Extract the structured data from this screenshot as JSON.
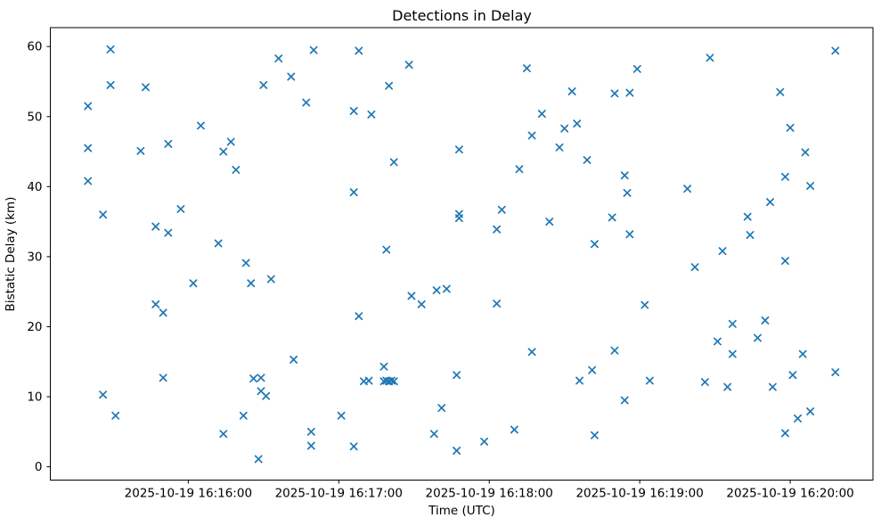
{
  "chart": {
    "title": "Detections in Delay",
    "xlabel": "Time (UTC)",
    "ylabel": "Bistatic Delay (km)"
  },
  "chart_data": {
    "type": "scatter",
    "title": "Detections in Delay",
    "xlabel": "Time (UTC)",
    "ylabel": "Bistatic Delay (km)",
    "marker": "x",
    "marker_color": "#1f77b4",
    "grid": false,
    "legend": null,
    "date": "2025-10-19",
    "x_ticks": [
      "2025-10-19 16:16:00",
      "2025-10-19 16:17:00",
      "2025-10-19 16:18:00",
      "2025-10-19 16:19:00",
      "2025-10-19 16:20:00"
    ],
    "y_ticks": [
      0,
      10,
      20,
      30,
      40,
      50,
      60
    ],
    "xlim": [
      "2025-10-19 16:15:05",
      "2025-10-19 16:20:33"
    ],
    "ylim": [
      -1.9,
      62.7
    ],
    "points": [
      [
        "16:15:29",
        59.6
      ],
      [
        "16:15:29",
        54.5
      ],
      [
        "16:15:43",
        54.2
      ],
      [
        "16:16:30",
        54.5
      ],
      [
        "16:15:20",
        51.5
      ],
      [
        "16:16:05",
        48.7
      ],
      [
        "16:15:20",
        45.5
      ],
      [
        "16:15:41",
        45.1
      ],
      [
        "16:15:52",
        46.1
      ],
      [
        "16:16:14",
        45.0
      ],
      [
        "16:16:17",
        46.4
      ],
      [
        "16:16:19",
        42.4
      ],
      [
        "16:15:20",
        40.8
      ],
      [
        "16:15:26",
        36.0
      ],
      [
        "16:15:57",
        36.8
      ],
      [
        "16:15:47",
        34.3
      ],
      [
        "16:15:52",
        33.4
      ],
      [
        "16:16:12",
        31.9
      ],
      [
        "16:16:50",
        59.5
      ],
      [
        "16:16:36",
        58.3
      ],
      [
        "16:17:08",
        59.4
      ],
      [
        "16:16:41",
        55.7
      ],
      [
        "16:17:28",
        57.4
      ],
      [
        "16:17:20",
        54.4
      ],
      [
        "16:16:47",
        52.0
      ],
      [
        "16:17:06",
        50.8
      ],
      [
        "16:17:13",
        50.3
      ],
      [
        "16:17:48",
        45.3
      ],
      [
        "16:17:22",
        43.5
      ],
      [
        "16:17:06",
        39.2
      ],
      [
        "16:17:48",
        36.1
      ],
      [
        "16:17:48",
        35.5
      ],
      [
        "16:17:19",
        31.0
      ],
      [
        "16:18:15",
        56.9
      ],
      [
        "16:18:59",
        56.8
      ],
      [
        "16:18:33",
        53.6
      ],
      [
        "16:18:50",
        53.3
      ],
      [
        "16:18:56",
        53.4
      ],
      [
        "16:18:21",
        50.4
      ],
      [
        "16:18:35",
        49.0
      ],
      [
        "16:18:30",
        48.3
      ],
      [
        "16:18:17",
        47.3
      ],
      [
        "16:18:28",
        45.6
      ],
      [
        "16:18:39",
        43.8
      ],
      [
        "16:18:12",
        42.5
      ],
      [
        "16:18:54",
        41.6
      ],
      [
        "16:18:55",
        39.1
      ],
      [
        "16:19:19",
        39.7
      ],
      [
        "16:18:05",
        36.7
      ],
      [
        "16:18:24",
        35.0
      ],
      [
        "16:18:49",
        35.6
      ],
      [
        "16:18:03",
        33.9
      ],
      [
        "16:18:56",
        33.2
      ],
      [
        "16:18:42",
        31.8
      ],
      [
        "16:19:28",
        58.4
      ],
      [
        "16:20:18",
        59.4
      ],
      [
        "16:19:56",
        53.5
      ],
      [
        "16:20:00",
        48.4
      ],
      [
        "16:20:06",
        44.9
      ],
      [
        "16:19:58",
        41.4
      ],
      [
        "16:20:08",
        40.1
      ],
      [
        "16:19:52",
        37.8
      ],
      [
        "16:19:43",
        35.7
      ],
      [
        "16:19:44",
        33.1
      ],
      [
        "16:19:33",
        30.8
      ],
      [
        "16:16:23",
        29.1
      ],
      [
        "16:16:02",
        26.2
      ],
      [
        "16:16:25",
        26.2
      ],
      [
        "16:15:47",
        23.2
      ],
      [
        "16:15:50",
        22.0
      ],
      [
        "16:15:50",
        12.7
      ],
      [
        "16:15:26",
        10.3
      ],
      [
        "16:15:31",
        7.3
      ],
      [
        "16:16:26",
        12.6
      ],
      [
        "16:16:29",
        12.7
      ],
      [
        "16:16:29",
        10.8
      ],
      [
        "16:16:31",
        10.1
      ],
      [
        "16:16:22",
        7.3
      ],
      [
        "16:16:14",
        4.7
      ],
      [
        "16:16:28",
        1.1
      ],
      [
        "16:16:33",
        26.8
      ],
      [
        "16:17:29",
        24.4
      ],
      [
        "16:17:39",
        25.2
      ],
      [
        "16:17:43",
        25.4
      ],
      [
        "16:17:33",
        23.2
      ],
      [
        "16:17:08",
        21.5
      ],
      [
        "16:16:42",
        15.3
      ],
      [
        "16:17:18",
        14.3
      ],
      [
        "16:17:10",
        12.2
      ],
      [
        "16:17:12",
        12.3
      ],
      [
        "16:17:18",
        12.2
      ],
      [
        "16:17:19",
        12.3
      ],
      [
        "16:17:20",
        12.2
      ],
      [
        "16:17:21",
        12.3
      ],
      [
        "16:17:22",
        12.2
      ],
      [
        "16:17:47",
        13.1
      ],
      [
        "16:17:41",
        8.4
      ],
      [
        "16:17:01",
        7.3
      ],
      [
        "16:16:49",
        5.0
      ],
      [
        "16:16:49",
        3.0
      ],
      [
        "16:17:06",
        2.9
      ],
      [
        "16:17:38",
        4.7
      ],
      [
        "16:17:47",
        2.3
      ],
      [
        "16:18:03",
        23.3
      ],
      [
        "16:19:02",
        23.1
      ],
      [
        "16:18:17",
        16.4
      ],
      [
        "16:18:50",
        16.6
      ],
      [
        "16:18:41",
        13.8
      ],
      [
        "16:18:36",
        12.3
      ],
      [
        "16:19:04",
        12.3
      ],
      [
        "16:18:54",
        9.5
      ],
      [
        "16:18:10",
        5.3
      ],
      [
        "16:18:42",
        4.5
      ],
      [
        "16:17:58",
        3.6
      ],
      [
        "16:19:22",
        28.5
      ],
      [
        "16:19:58",
        29.4
      ],
      [
        "16:19:37",
        20.4
      ],
      [
        "16:19:50",
        20.9
      ],
      [
        "16:19:31",
        17.9
      ],
      [
        "16:19:47",
        18.4
      ],
      [
        "16:19:37",
        16.1
      ],
      [
        "16:20:05",
        16.1
      ],
      [
        "16:20:01",
        13.1
      ],
      [
        "16:20:18",
        13.5
      ],
      [
        "16:19:26",
        12.1
      ],
      [
        "16:19:35",
        11.4
      ],
      [
        "16:19:53",
        11.4
      ],
      [
        "16:20:08",
        7.9
      ],
      [
        "16:20:03",
        6.9
      ],
      [
        "16:19:58",
        4.8
      ]
    ]
  }
}
